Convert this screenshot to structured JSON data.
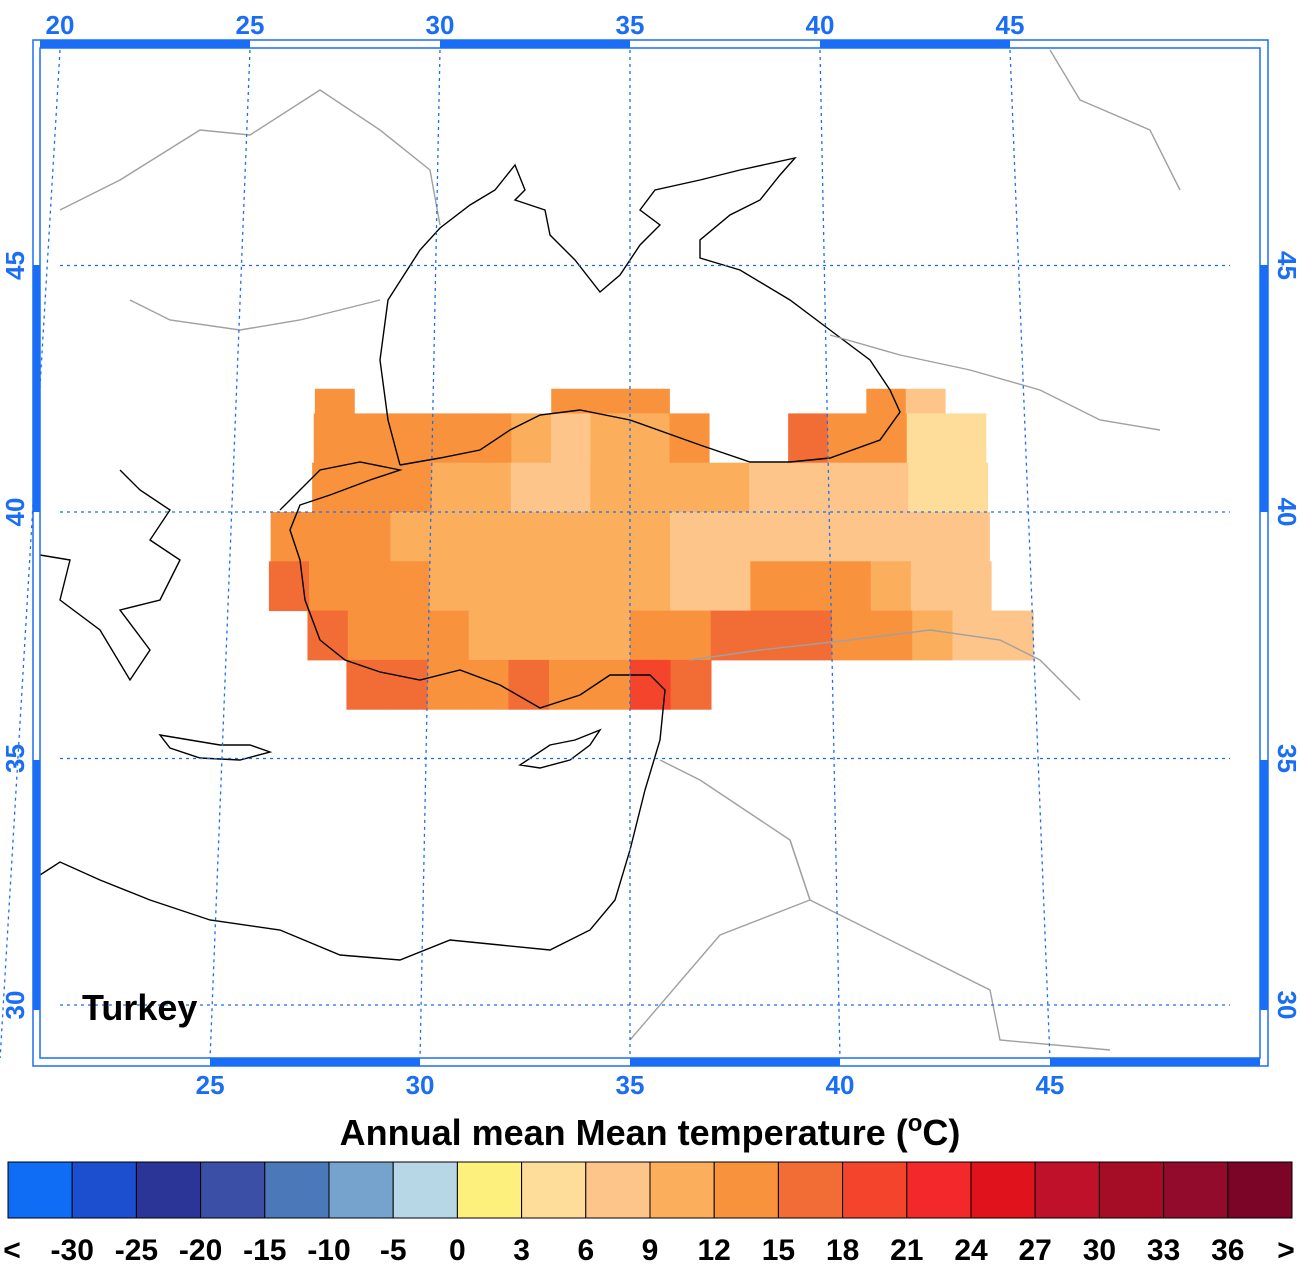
{
  "map": {
    "title": "Turkey",
    "lon_ticks_top": [
      20,
      25,
      30,
      35,
      40,
      45
    ],
    "lon_ticks_bottom": [
      25,
      30,
      35,
      40,
      45
    ],
    "lat_ticks_left": [
      45,
      40,
      35,
      30
    ],
    "lat_ticks_right": [
      45,
      40,
      35,
      30
    ],
    "lon_edges": [
      26,
      27,
      28,
      29,
      30,
      31,
      32,
      33,
      34,
      35,
      36,
      37,
      38,
      39,
      40,
      41,
      42,
      43,
      44,
      45
    ],
    "lat_edges": [
      42.5,
      42,
      41,
      40,
      39,
      38,
      37,
      36
    ],
    "cells": [
      [
        null,
        13,
        null,
        null,
        null,
        null,
        null,
        14,
        14,
        14,
        null,
        null,
        null,
        null,
        null,
        14,
        6,
        null,
        null
      ],
      [
        null,
        13,
        13,
        13,
        13,
        13,
        11,
        8,
        11,
        11,
        13,
        null,
        null,
        16,
        14,
        13,
        5,
        4,
        null
      ],
      [
        null,
        13,
        13,
        12,
        11,
        11,
        8,
        8,
        11,
        11,
        11,
        10,
        8,
        8,
        7,
        6,
        5,
        5,
        null
      ],
      [
        14,
        13,
        13,
        10,
        11,
        11,
        11,
        11,
        11,
        11,
        8,
        8,
        7,
        7,
        7,
        6,
        6,
        7,
        null
      ],
      [
        16,
        14,
        13,
        13,
        11,
        11,
        11,
        11,
        11,
        11,
        8,
        8,
        13,
        13,
        13,
        11,
        8,
        8,
        null
      ],
      [
        null,
        16,
        14,
        13,
        13,
        11,
        11,
        11,
        11,
        14,
        13,
        16,
        16,
        16,
        14,
        13,
        11,
        8,
        7
      ],
      [
        null,
        null,
        16,
        16,
        13,
        14,
        16,
        14,
        14,
        19,
        16,
        null,
        null,
        null,
        null,
        null,
        null,
        null,
        null
      ]
    ]
  },
  "colorbar": {
    "title_prefix": "Annual mean Mean temperature (",
    "title_sup": "o",
    "title_suffix": "C)",
    "labels": [
      "<",
      -30,
      -25,
      -20,
      -15,
      -10,
      -5,
      0,
      3,
      6,
      9,
      12,
      15,
      18,
      21,
      24,
      27,
      30,
      33,
      36,
      ">"
    ],
    "colors": [
      "#0f6df5",
      "#1b4fd0",
      "#2b3598",
      "#3a4fa5",
      "#4a78b8",
      "#76a3cd",
      "#b7d6e6",
      "#fdf07c",
      "#fedc9a",
      "#fdc58a",
      "#fbaf5d",
      "#f9923d",
      "#f26c36",
      "#f5442c",
      "#f2282a",
      "#e0121c",
      "#c0112b",
      "#a50d26",
      "#930b2c",
      "#7a0526"
    ]
  }
}
